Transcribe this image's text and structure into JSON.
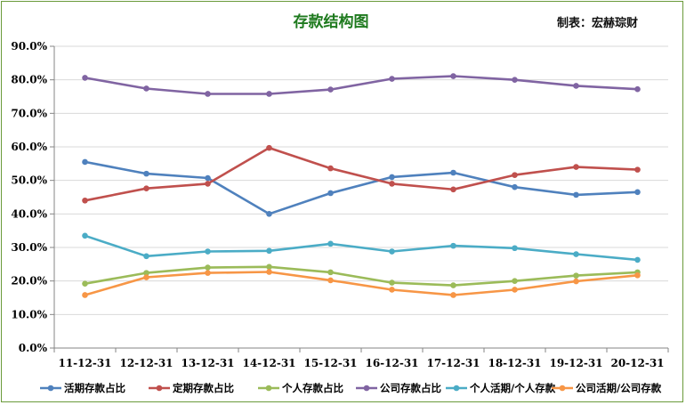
{
  "chart_data": {
    "type": "line",
    "title": "存款结构图",
    "credit": "制表：宏赫琮财",
    "x": [
      "11-12-31",
      "12-12-31",
      "13-12-31",
      "14-12-31",
      "15-12-31",
      "16-12-31",
      "17-12-31",
      "18-12-31",
      "19-12-31",
      "20-12-31"
    ],
    "ylim": [
      0,
      90
    ],
    "yticks": [
      "0.0%",
      "10.0%",
      "20.0%",
      "30.0%",
      "40.0%",
      "50.0%",
      "60.0%",
      "70.0%",
      "80.0%",
      "90.0%"
    ],
    "grid": true,
    "legend_position": "bottom",
    "series": [
      {
        "name": "活期存款占比",
        "color": "#4f81bd",
        "values": [
          55.5,
          52.0,
          50.7,
          40.0,
          46.2,
          51.0,
          52.3,
          48.0,
          45.7,
          46.5
        ]
      },
      {
        "name": "定期存款占比",
        "color": "#c0504d",
        "values": [
          44.0,
          47.6,
          49.0,
          59.7,
          53.6,
          49.0,
          47.3,
          51.6,
          54.0,
          53.2
        ]
      },
      {
        "name": "个人存款占比",
        "color": "#9bbb59",
        "values": [
          19.2,
          22.4,
          24.0,
          24.2,
          22.6,
          19.5,
          18.7,
          20.0,
          21.6,
          22.6
        ]
      },
      {
        "name": "公司存款占比",
        "color": "#8064a2",
        "values": [
          80.6,
          77.4,
          75.8,
          75.8,
          77.1,
          80.3,
          81.1,
          80.0,
          78.2,
          77.2
        ]
      },
      {
        "name": "个人活期/个人存款",
        "color": "#4bacc6",
        "values": [
          33.5,
          27.4,
          28.8,
          29.0,
          31.1,
          28.8,
          30.5,
          29.8,
          28.0,
          26.3
        ]
      },
      {
        "name": "公司活期/公司存款",
        "color": "#f79646",
        "values": [
          15.8,
          21.1,
          22.4,
          22.7,
          20.2,
          17.4,
          15.8,
          17.4,
          19.9,
          21.7
        ]
      }
    ]
  }
}
